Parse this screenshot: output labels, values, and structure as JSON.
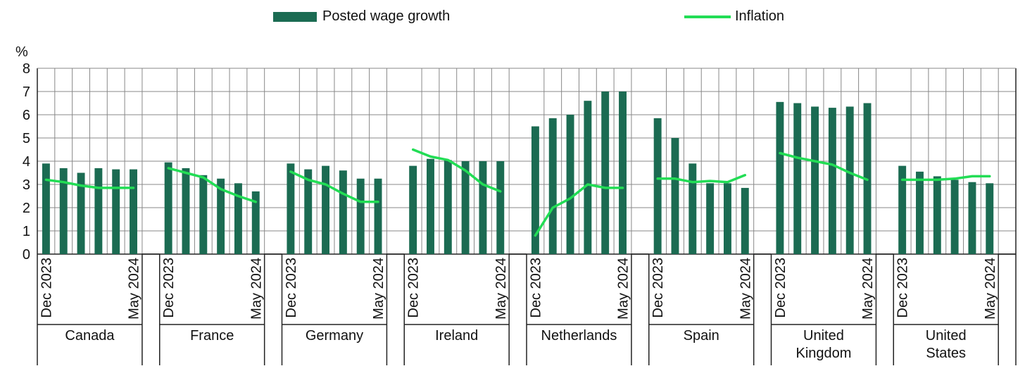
{
  "colors": {
    "bar": "#1b6b52",
    "line": "#22dd55",
    "grid": "#888888",
    "axis": "#222222"
  },
  "chart_data": {
    "type": "bar",
    "legend_position": "top",
    "grid": true,
    "ylabel": "%",
    "ylim": [
      0,
      8
    ],
    "yticks": [
      "0",
      "1",
      "2",
      "3",
      "4",
      "5",
      "6",
      "7",
      "8"
    ],
    "period_labels": {
      "start": "Dec 2023",
      "end": "May 2024"
    },
    "series": [
      {
        "name": "Posted wage growth",
        "kind": "bar"
      },
      {
        "name": "Inflation",
        "kind": "line"
      }
    ],
    "groups": [
      {
        "country": "Canada",
        "wage": [
          3.9,
          3.7,
          3.5,
          3.7,
          3.65,
          3.65
        ],
        "inflation": [
          3.2,
          3.1,
          2.95,
          2.85,
          2.85,
          2.85
        ]
      },
      {
        "country": "France",
        "wage": [
          3.95,
          3.7,
          3.4,
          3.25,
          3.05,
          2.7
        ],
        "inflation": [
          3.7,
          3.5,
          3.3,
          2.8,
          2.5,
          2.25
        ]
      },
      {
        "country": "Germany",
        "wage": [
          3.9,
          3.65,
          3.8,
          3.6,
          3.25,
          3.25
        ],
        "inflation": [
          3.55,
          3.2,
          3.0,
          2.6,
          2.25,
          2.25
        ]
      },
      {
        "country": "Ireland",
        "wage": [
          3.8,
          4.1,
          4.05,
          4.0,
          4.0,
          4.0
        ],
        "inflation": [
          4.5,
          4.2,
          4.05,
          3.6,
          3.0,
          2.7
        ]
      },
      {
        "country": "Netherlands",
        "wage": [
          5.5,
          5.85,
          6.0,
          6.6,
          7.0,
          7.0
        ],
        "inflation": [
          0.8,
          2.0,
          2.4,
          3.0,
          2.85,
          2.85
        ]
      },
      {
        "country": "Spain",
        "wage": [
          5.85,
          5.0,
          3.9,
          3.05,
          3.05,
          2.85
        ],
        "inflation": [
          3.25,
          3.25,
          3.1,
          3.15,
          3.1,
          3.4
        ]
      },
      {
        "country": "United Kingdom",
        "wage": [
          6.55,
          6.5,
          6.35,
          6.3,
          6.35,
          6.5
        ],
        "inflation": [
          4.35,
          4.15,
          4.0,
          3.85,
          3.5,
          3.2
        ]
      },
      {
        "country": "United States",
        "wage": [
          3.8,
          3.55,
          3.35,
          3.2,
          3.1,
          3.05
        ],
        "inflation": [
          3.2,
          3.2,
          3.2,
          3.25,
          3.35,
          3.35
        ]
      }
    ]
  }
}
